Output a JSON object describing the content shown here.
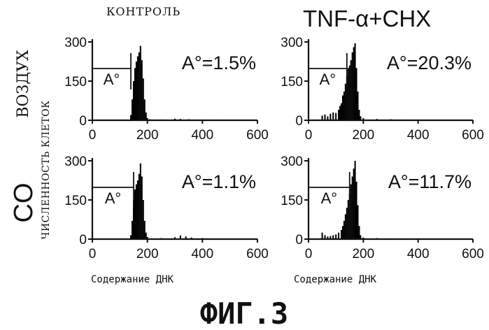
{
  "figure": {
    "caption": "ФИГ.3",
    "column_labels": [
      "КОНТРОЛЬ",
      "TNF-α+CHX"
    ],
    "row_labels": [
      "ВОЗДУХ",
      "CO"
    ],
    "y_axis_label": "ЧИСЛЕННОСТЬ КЛЕТОК",
    "x_axis_label": "Содержание ДНК",
    "gate_label": "A°"
  },
  "chart_data": [
    {
      "type": "bar",
      "panel": "ВОЗДУХ / КОНТРОЛЬ",
      "annotation": "A°=1.5%",
      "xlabel": "",
      "ylabel": "",
      "xlim": [
        0,
        600
      ],
      "ylim": [
        0,
        300
      ],
      "x_ticks": [
        0,
        200,
        400,
        600
      ],
      "y_ticks": [
        0,
        150,
        300
      ],
      "gate": [
        0,
        140
      ],
      "x": [
        140,
        145,
        150,
        155,
        160,
        165,
        170,
        175,
        180,
        185,
        190,
        195,
        200,
        210,
        250,
        300,
        320,
        350,
        400,
        450,
        500
      ],
      "values": [
        20,
        80,
        150,
        200,
        225,
        245,
        260,
        285,
        230,
        160,
        80,
        30,
        8,
        4,
        3,
        6,
        5,
        4,
        3,
        3,
        2
      ]
    },
    {
      "type": "bar",
      "panel": "ВОЗДУХ / TNF-α+CHX",
      "annotation": "A°=20.3%",
      "xlabel": "",
      "ylabel": "",
      "xlim": [
        0,
        600
      ],
      "ylim": [
        0,
        300
      ],
      "x_ticks": [
        0,
        200,
        400,
        600
      ],
      "y_ticks": [
        0,
        150,
        300
      ],
      "gate": [
        0,
        140
      ],
      "x": [
        50,
        60,
        70,
        80,
        90,
        100,
        110,
        115,
        120,
        125,
        130,
        135,
        140,
        145,
        150,
        155,
        160,
        165,
        170,
        175,
        180,
        185,
        190,
        200,
        250,
        300,
        350,
        400
      ],
      "values": [
        18,
        22,
        15,
        25,
        30,
        28,
        40,
        55,
        65,
        95,
        110,
        140,
        170,
        200,
        210,
        230,
        260,
        280,
        295,
        200,
        110,
        40,
        15,
        8,
        5,
        4,
        3,
        2
      ]
    },
    {
      "type": "bar",
      "panel": "CO / КОНТРОЛЬ",
      "annotation": "A°=1.1%",
      "xlabel": "",
      "ylabel": "",
      "xlim": [
        0,
        600
      ],
      "ylim": [
        0,
        300
      ],
      "x_ticks": [
        0,
        200,
        400,
        600
      ],
      "y_ticks": [
        0,
        150,
        300
      ],
      "gate": [
        0,
        150
      ],
      "x": [
        140,
        145,
        150,
        155,
        160,
        165,
        170,
        175,
        180,
        185,
        190,
        195,
        200,
        250,
        300,
        320,
        340,
        360,
        400,
        450,
        500
      ],
      "values": [
        15,
        70,
        150,
        190,
        210,
        225,
        250,
        290,
        240,
        150,
        70,
        25,
        8,
        4,
        7,
        14,
        10,
        6,
        4,
        3,
        2
      ]
    },
    {
      "type": "bar",
      "panel": "CO / TNF-α+CHX",
      "annotation": "A°=11.7%",
      "xlabel": "",
      "ylabel": "",
      "xlim": [
        0,
        600
      ],
      "ylim": [
        0,
        300
      ],
      "x_ticks": [
        0,
        200,
        400,
        600
      ],
      "y_ticks": [
        0,
        150,
        300
      ],
      "gate": [
        0,
        150
      ],
      "x": [
        50,
        60,
        70,
        80,
        90,
        100,
        110,
        120,
        125,
        130,
        135,
        140,
        145,
        150,
        155,
        160,
        165,
        170,
        175,
        180,
        185,
        190,
        200,
        250,
        300,
        350,
        400
      ],
      "values": [
        25,
        15,
        10,
        12,
        15,
        18,
        25,
        35,
        50,
        70,
        95,
        120,
        150,
        175,
        210,
        240,
        270,
        300,
        220,
        130,
        50,
        15,
        6,
        4,
        3,
        3,
        2
      ]
    }
  ]
}
